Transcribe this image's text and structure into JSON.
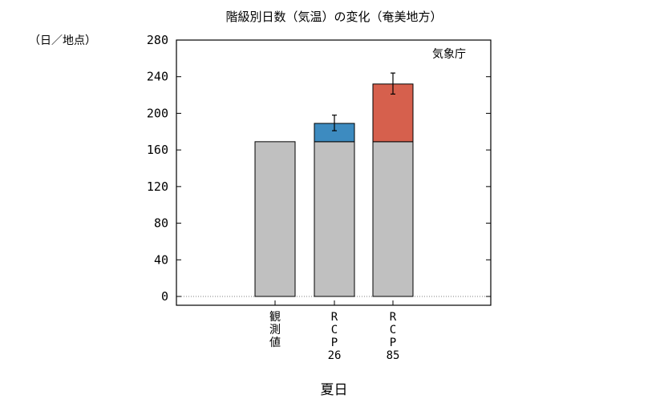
{
  "chart_data": {
    "type": "bar",
    "title": "階級別日数（気温）の変化（奄美地方）",
    "ylabel": "（日／地点）",
    "xlabel": "夏日",
    "source": "気象庁",
    "ylim": [
      0,
      280
    ],
    "yticks": [
      0,
      40,
      80,
      120,
      160,
      200,
      240,
      280
    ],
    "categories": [
      {
        "lines": [
          "観",
          "測",
          "値"
        ]
      },
      {
        "lines": [
          "R",
          "C",
          "P",
          "26"
        ]
      },
      {
        "lines": [
          "R",
          "C",
          "P",
          "85"
        ]
      }
    ],
    "series": [
      {
        "values": [
          169,
          169,
          169
        ],
        "color": "#c0c0c0"
      },
      {
        "values": [
          0,
          20,
          63
        ],
        "colors": [
          "#c0c0c0",
          "#3d8bc0",
          "#d6604d"
        ]
      }
    ],
    "totals": [
      169,
      189,
      232
    ],
    "error": [
      null,
      [
        181,
        198
      ],
      [
        221,
        244
      ]
    ],
    "grid": false,
    "legend": "none"
  }
}
